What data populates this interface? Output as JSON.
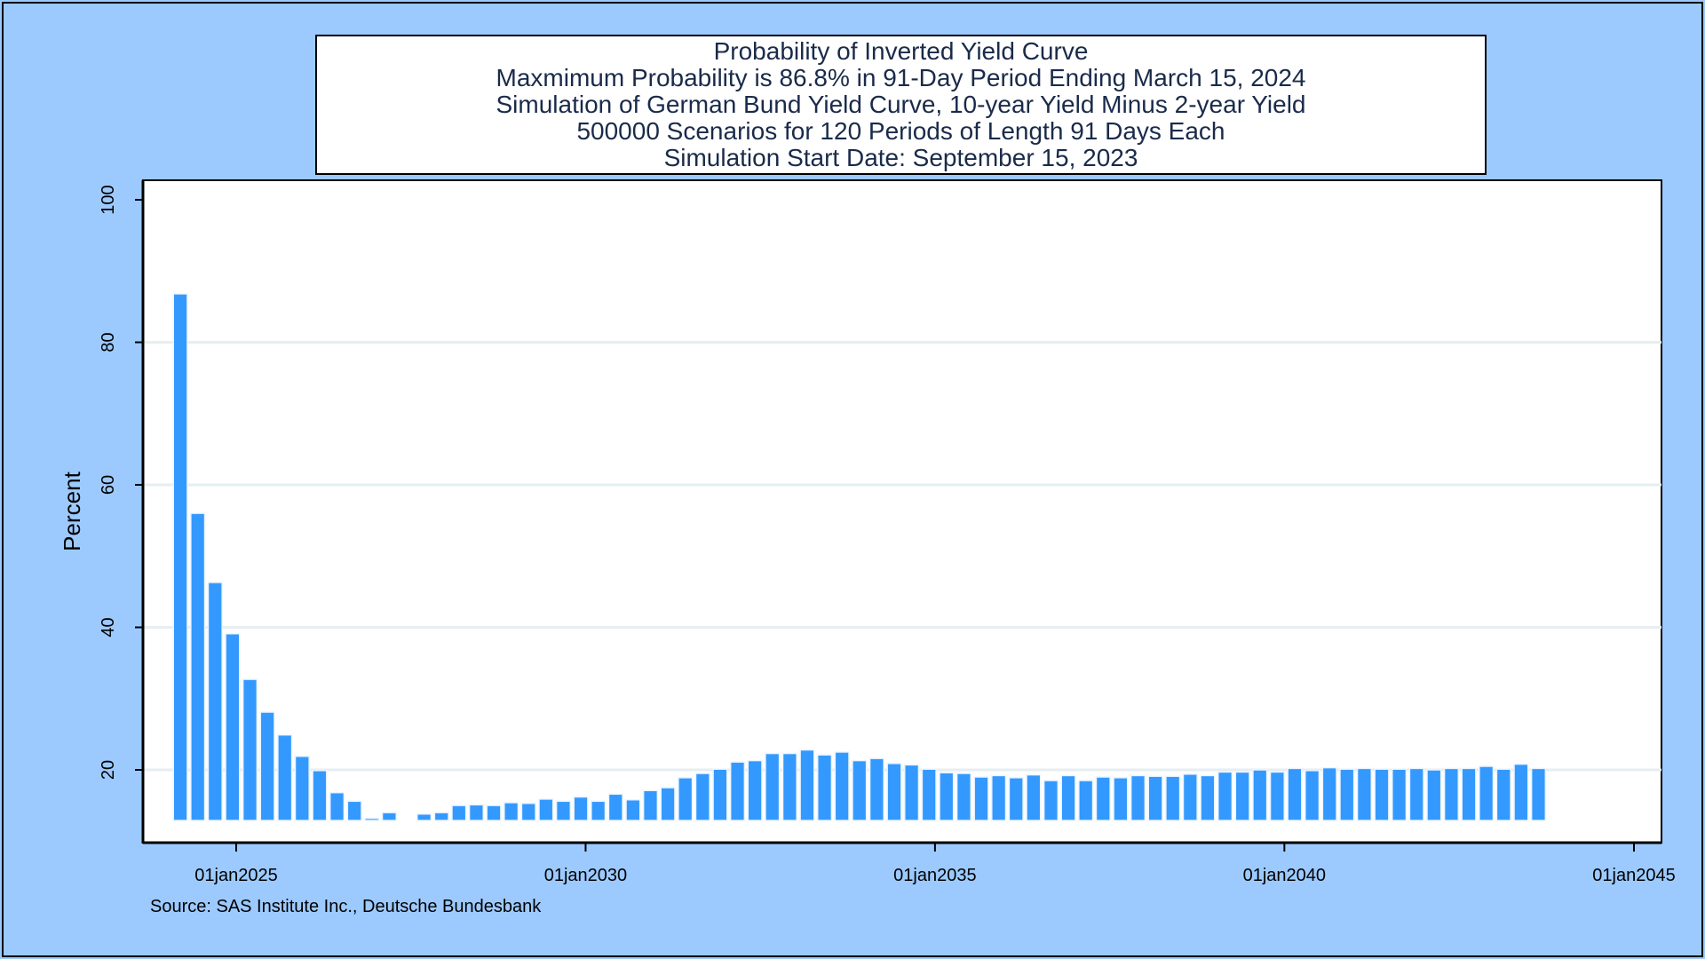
{
  "chart_data": {
    "type": "bar",
    "title": "Probability of Inverted Yield Curve",
    "subtitles": [
      "Maxmimum Probability is 86.8% in 91-Day Period Ending March 15, 2024",
      "Simulation of German Bund Yield Curve, 10-year Yield Minus 2-year Yield",
      "500000 Scenarios for 120 Periods of Length 91 Days Each",
      "Simulation Start Date: September 15, 2023"
    ],
    "ylabel": "Percent",
    "xlabel": "",
    "ylim": [
      10,
      100
    ],
    "yticks": [
      20,
      40,
      60,
      80,
      100
    ],
    "xlim": [
      "2023-09-15",
      "2045-01-01"
    ],
    "xticks": [
      {
        "date": "2025-01-01",
        "label": "01jan2025"
      },
      {
        "date": "2030-01-01",
        "label": "01jan2030"
      },
      {
        "date": "2035-01-01",
        "label": "01jan2035"
      },
      {
        "date": "2040-01-01",
        "label": "01jan2040"
      },
      {
        "date": "2045-01-01",
        "label": "01jan2045"
      }
    ],
    "grid": true,
    "bar_color": "#3399ff",
    "period_days": 91,
    "x_first": "2024-03-15",
    "values": [
      86.8,
      56.0,
      46.3,
      39.1,
      32.7,
      28.1,
      24.9,
      21.9,
      19.9,
      16.8,
      15.6,
      13.2,
      14.0,
      null,
      13.8,
      14.0,
      15.0,
      15.1,
      15.0,
      15.4,
      15.3,
      15.9,
      15.6,
      16.2,
      15.6,
      16.6,
      15.8,
      17.1,
      17.5,
      18.9,
      19.5,
      20.1,
      21.1,
      21.3,
      22.3,
      22.3,
      22.8,
      22.1,
      22.5,
      21.3,
      21.6,
      20.9,
      20.7,
      20.1,
      19.6,
      19.5,
      19.0,
      19.2,
      18.9,
      19.3,
      18.5,
      19.2,
      18.5,
      19.0,
      18.9,
      19.2,
      19.1,
      19.1,
      19.4,
      19.2,
      19.7,
      19.7,
      20.0,
      19.7,
      20.2,
      19.9,
      20.3,
      20.1,
      20.2,
      20.1,
      20.1,
      20.2,
      20.0,
      20.2,
      20.2,
      20.5,
      20.1,
      20.8,
      20.2
    ]
  },
  "source": "Source: SAS Institute Inc., Deutsche Bundesbank"
}
